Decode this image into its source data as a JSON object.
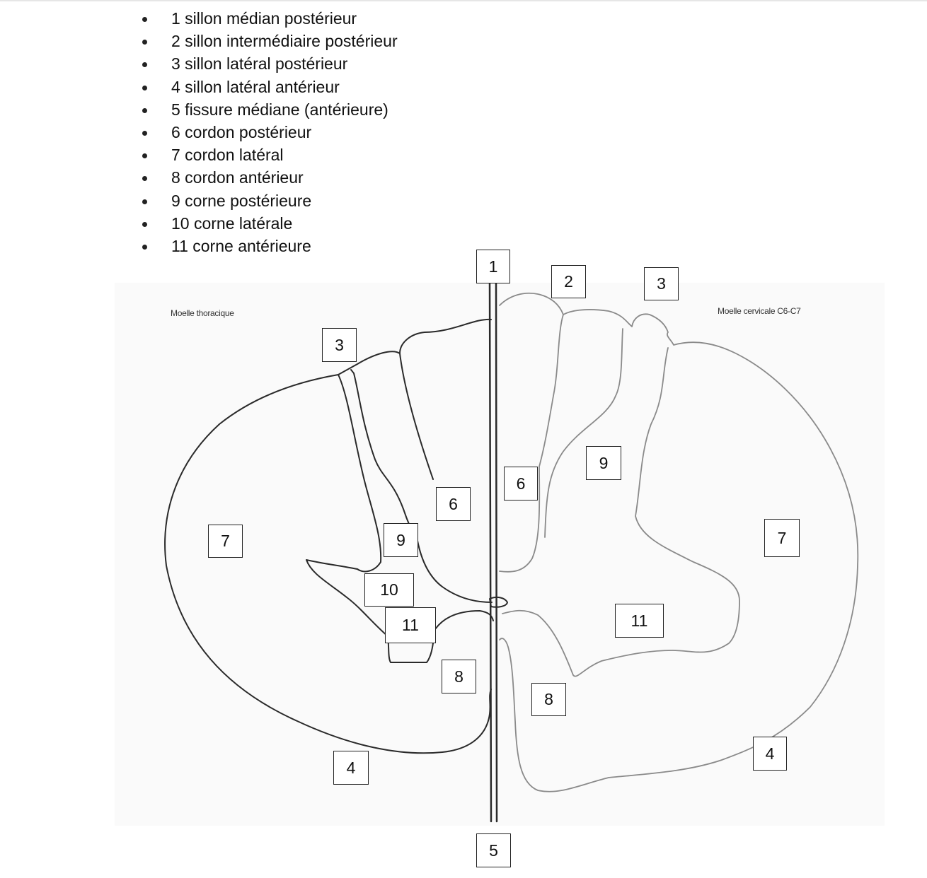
{
  "legend": [
    "1 sillon médian postérieur",
    "2 sillon intermédiaire postérieur",
    "3 sillon latéral postérieur",
    "4 sillon latéral antérieur",
    "5 fissure médiane (antérieure)",
    "6 cordon postérieur",
    "7 cordon latéral",
    "8 cordon antérieur",
    "9 corne postérieure",
    "10 corne latérale",
    "11 corne antérieure"
  ],
  "captions": {
    "left": "Moelle thoracique",
    "right": "Moelle cervicale C6-C7"
  },
  "labels": {
    "median_top": "1",
    "right_2": "2",
    "right_3": "3",
    "left_3": "3",
    "left_6": "6",
    "right_6": "6",
    "right_9": "9",
    "left_7": "7",
    "left_9": "9",
    "right_7": "7",
    "left_10": "10",
    "left_11": "11",
    "right_11": "11",
    "left_8": "8",
    "right_8": "8",
    "left_4": "4",
    "right_4": "4",
    "median_bottom": "5"
  }
}
